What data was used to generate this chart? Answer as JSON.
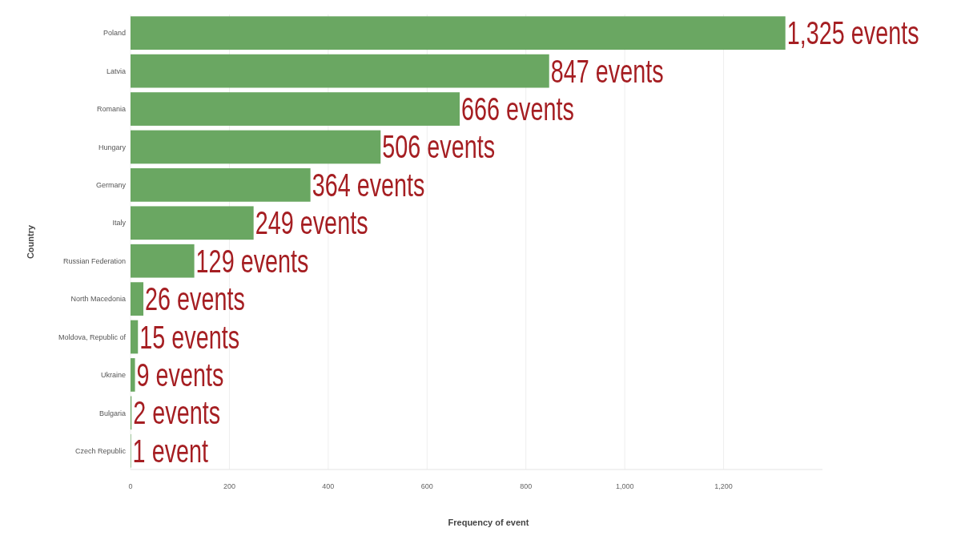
{
  "chart_data": {
    "type": "bar",
    "orientation": "horizontal",
    "xlabel": "Frequency of event",
    "ylabel": "Country",
    "categories": [
      "Poland",
      "Latvia",
      "Romania",
      "Hungary",
      "Germany",
      "Italy",
      "Russian Federation",
      "North Macedonia",
      "Moldova, Republic of",
      "Ukraine",
      "Bulgaria",
      "Czech Republic"
    ],
    "values": [
      1325,
      847,
      666,
      506,
      364,
      249,
      129,
      26,
      15,
      9,
      2,
      1
    ],
    "value_labels": [
      "1,325 events",
      "847 events",
      "666 events",
      "506 events",
      "364 events",
      "249 events",
      "129 events",
      "26 events",
      "15 events",
      "9 events",
      "2 events",
      "1 event"
    ],
    "color": "#6aa762",
    "xlim": [
      0,
      1400
    ],
    "xticks": [
      0,
      200,
      400,
      600,
      800,
      {
        "value": 1000,
        "label": "1,000"
      },
      {
        "value": 1200,
        "label": "1,200"
      }
    ],
    "grid": "x"
  }
}
